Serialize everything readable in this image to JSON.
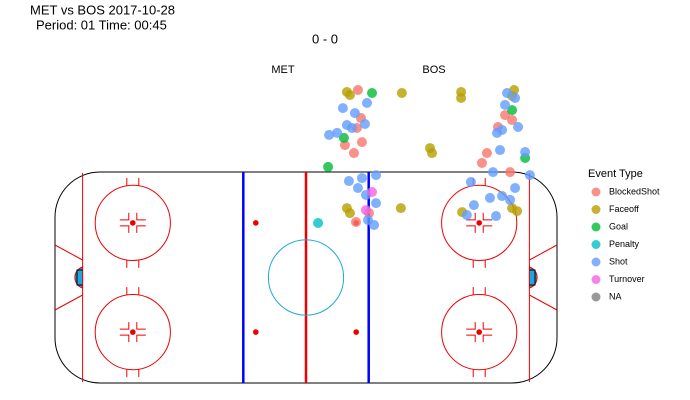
{
  "chart_data": {
    "type": "scatter",
    "title": "MET vs BOS 2017-10-28",
    "subtitle": "Period: 01 Time: 00:45",
    "score": "0 - 0",
    "left_team": "MET",
    "right_team": "BOS",
    "legend_title": "Event Type",
    "xlim": [
      -100,
      100
    ],
    "ylim": [
      -42.5,
      80
    ],
    "series": [
      {
        "name": "BlockedShot",
        "color": "#F8766D",
        "x": [
          20.7,
          21.9,
          20.3,
          15.5,
          19.1,
          22.3,
          79.3,
          82.1,
          76.5,
          72.1,
          70.1,
          81.3,
          19.9,
          25.1
        ],
        "y": [
          75.6,
          64.3,
          60.3,
          53.4,
          50.2,
          54.6,
          65.5,
          63.5,
          60.7,
          50.2,
          46.2,
          42.5,
          22.4,
          26.0
        ]
      },
      {
        "name": "Faceoff",
        "color": "#B79F00",
        "x": [
          16.3,
          17.5,
          38.2,
          61.8,
          61.8,
          82.9,
          82.1,
          49.4,
          50.2,
          16.3,
          17.5,
          37.8,
          62.2,
          82.1,
          84.1
        ],
        "y": [
          74.8,
          73.6,
          74.4,
          74.8,
          72.4,
          75.6,
          73.2,
          52.2,
          50.2,
          28.0,
          26.0,
          28.0,
          26.4,
          28.0,
          26.8
        ]
      },
      {
        "name": "Goal",
        "color": "#00BA38",
        "x": [
          26.3,
          8.8,
          82.1,
          87.3,
          15.1
        ],
        "y": [
          74.4,
          44.6,
          67.5,
          48.2,
          56.3
        ]
      },
      {
        "name": "Penalty",
        "color": "#00BFC4",
        "x": [
          4.8
        ],
        "y": [
          22.0
        ]
      },
      {
        "name": "Shot",
        "color": "#619CFF",
        "x": [
          24.3,
          14.7,
          19.5,
          16.3,
          12.4,
          9.2,
          18.3,
          23.5,
          27.9,
          22.3,
          17.1,
          20.7,
          23.9,
          27.9,
          24.7,
          27.1,
          80.1,
          83.3,
          79.3,
          84.5,
          78.1,
          76.1,
          87.3,
          89.2,
          77.3,
          74.5,
          83.3,
          65.7,
          78.1,
          73.3,
          75.7,
          66.9,
          64.1,
          81.3
        ],
        "y": [
          70.4,
          68.3,
          66.3,
          61.5,
          58.3,
          57.5,
          60.3,
          61.9,
          41.3,
          40.1,
          38.9,
          36.1,
          33.3,
          30.0,
          23.2,
          21.2,
          74.4,
          72.4,
          69.6,
          60.7,
          59.5,
          58.3,
          50.6,
          41.3,
          51.4,
          42.5,
          36.1,
          38.5,
          32.9,
          32.1,
          24.8,
          29.2,
          25.2,
          31.3
        ]
      },
      {
        "name": "Turnover",
        "color": "#F564E3",
        "x": [
          26.3,
          23.9
        ],
        "y": [
          34.5,
          27.2
        ]
      },
      {
        "name": "NA",
        "color": "#808080",
        "x": [],
        "y": []
      }
    ]
  }
}
